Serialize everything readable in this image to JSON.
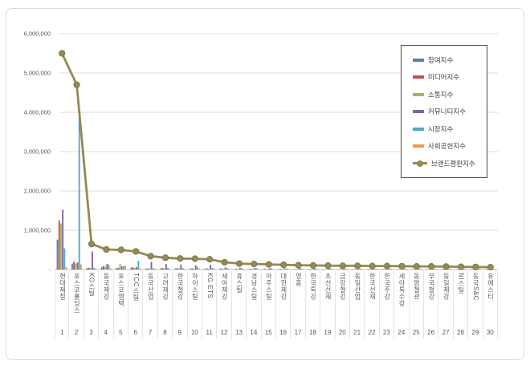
{
  "chart_data": {
    "type": "bar",
    "subtype": "grouped-bars-with-line-overlay",
    "title": "",
    "xlabel": "",
    "ylabel": "",
    "ylim": [
      0,
      6000000
    ],
    "ytick_interval": 1000000,
    "ytick_labels": [
      "-",
      "1,000,000",
      "2,000,000",
      "3,000,000",
      "4,000,000",
      "5,000,000",
      "6,000,000"
    ],
    "grid": true,
    "legend_position": "right-inside-box",
    "categories": [
      "현대제철",
      "포스코홀딩스",
      "KG스틸",
      "동국제강",
      "포스코엠텍",
      "TCC스틸",
      "동국산업",
      "고려제강",
      "한국철강",
      "하이스틸",
      "KG ETS",
      "세아제강",
      "휴스틸",
      "경남스틸",
      "아주스틸",
      "대한제강",
      "영흥",
      "한국특강",
      "조선선재",
      "금강철강",
      "동일산업",
      "한국선재",
      "한국주강",
      "세아특수강",
      "동양철관",
      "부국철강",
      "동일제강",
      "NI스틸",
      "동국S&C",
      "유에스티"
    ],
    "category_index_labels": [
      "1",
      "2",
      "3",
      "4",
      "5",
      "6",
      "7",
      "8",
      "9",
      "10",
      "11",
      "12",
      "13",
      "14",
      "15",
      "16",
      "17",
      "18",
      "19",
      "20",
      "21",
      "22",
      "23",
      "24",
      "25",
      "26",
      "27",
      "28",
      "29",
      "30"
    ],
    "series": [
      {
        "name": "참여지수",
        "type": "bar",
        "color": "#4F81BD",
        "values": [
          760000,
          150000,
          35000,
          60000,
          35000,
          55000,
          25000,
          30000,
          30000,
          25000,
          20000,
          25000,
          15000,
          15000,
          20000,
          15000,
          10000,
          12000,
          10000,
          10000,
          8000,
          10000,
          8000,
          10000,
          8000,
          8000,
          8000,
          6000,
          6000,
          5000
        ]
      },
      {
        "name": "미디어지수",
        "type": "bar",
        "color": "#C0504D",
        "values": [
          1250000,
          200000,
          45000,
          90000,
          45000,
          50000,
          30000,
          40000,
          35000,
          30000,
          30000,
          25000,
          20000,
          18000,
          15000,
          15000,
          12000,
          12000,
          10000,
          10000,
          10000,
          8000,
          8000,
          8000,
          8000,
          8000,
          6000,
          6000,
          5000,
          5000
        ]
      },
      {
        "name": "소통지수",
        "type": "bar",
        "color": "#9BBB59",
        "values": [
          1170000,
          150000,
          40000,
          70000,
          150000,
          45000,
          25000,
          30000,
          25000,
          25000,
          20000,
          20000,
          15000,
          15000,
          15000,
          12000,
          12000,
          10000,
          10000,
          8000,
          8000,
          8000,
          8000,
          8000,
          6000,
          6000,
          6000,
          5000,
          5000,
          5000
        ]
      },
      {
        "name": "커뮤니티지수",
        "type": "bar",
        "color": "#8064A2",
        "values": [
          1520000,
          180000,
          460000,
          140000,
          85000,
          60000,
          200000,
          140000,
          130000,
          110000,
          120000,
          55000,
          45000,
          40000,
          35000,
          30000,
          30000,
          25000,
          25000,
          20000,
          20000,
          20000,
          20000,
          15000,
          15000,
          15000,
          15000,
          12000,
          10000,
          10000
        ]
      },
      {
        "name": "시장지수",
        "type": "bar",
        "color": "#4BACC6",
        "values": [
          540000,
          3860000,
          45000,
          120000,
          85000,
          220000,
          35000,
          45000,
          40000,
          60000,
          45000,
          40000,
          35000,
          35000,
          30000,
          30000,
          30000,
          30000,
          25000,
          25000,
          20000,
          20000,
          20000,
          20000,
          18000,
          18000,
          15000,
          15000,
          15000,
          12000
        ]
      },
      {
        "name": "사회공헌지수",
        "type": "bar",
        "color": "#F79646",
        "values": [
          60000,
          130000,
          25000,
          30000,
          100000,
          30000,
          25000,
          15000,
          20000,
          25000,
          25000,
          20000,
          20000,
          17000,
          15000,
          18000,
          16000,
          16000,
          20000,
          22000,
          25000,
          24000,
          24000,
          24000,
          25000,
          25000,
          25000,
          26000,
          24000,
          23000
        ]
      },
      {
        "name": "브랜드평판지수",
        "type": "line",
        "color": "#948A54",
        "marker_stroke": "#7a7142",
        "values": [
          5500000,
          4700000,
          650000,
          510000,
          500000,
          460000,
          340000,
          300000,
          280000,
          275000,
          260000,
          185000,
          150000,
          140000,
          130000,
          120000,
          110000,
          105000,
          100000,
          95000,
          95000,
          90000,
          90000,
          85000,
          80000,
          80000,
          75000,
          70000,
          65000,
          60000
        ]
      }
    ]
  }
}
